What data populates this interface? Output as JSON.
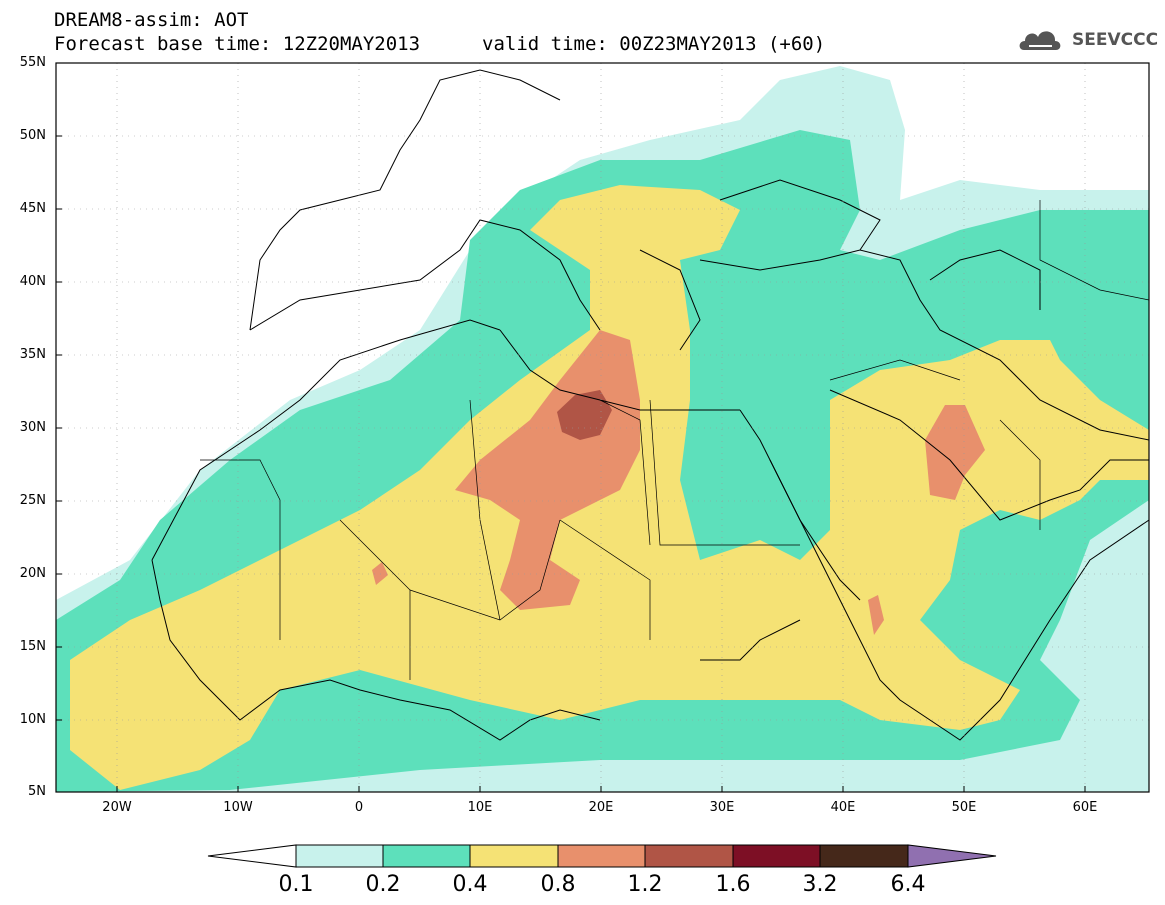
{
  "title": {
    "line1": "DREAM8-assim: AOT",
    "base": "Forecast base time: 12Z20MAY2013",
    "valid": "valid time: 00Z23MAY2013 (+60)"
  },
  "logo": {
    "name": "cloud-logo-icon",
    "text": "SEEVCCC"
  },
  "lat_labels": [
    "55N",
    "50N",
    "45N",
    "40N",
    "35N",
    "30N",
    "25N",
    "20N",
    "15N",
    "10N",
    "5N"
  ],
  "lon_labels": [
    "20W",
    "10W",
    "0",
    "10E",
    "20E",
    "30E",
    "40E",
    "50E",
    "60E"
  ],
  "colorbar": {
    "labels": [
      "0.1",
      "0.2",
      "0.4",
      "0.8",
      "1.2",
      "1.6",
      "3.2",
      "6.4"
    ],
    "colors": [
      "#c8f2ec",
      "#5de0bb",
      "#f5e275",
      "#e8906c",
      "#b05546",
      "#7d0f25",
      "#45281a",
      "#9070b0"
    ],
    "below_color": "#ffffff"
  },
  "map": {
    "extent": {
      "lon_min": -25,
      "lon_max": 65,
      "lat_min": 5,
      "lat_max": 55
    },
    "field": "AOT"
  }
}
